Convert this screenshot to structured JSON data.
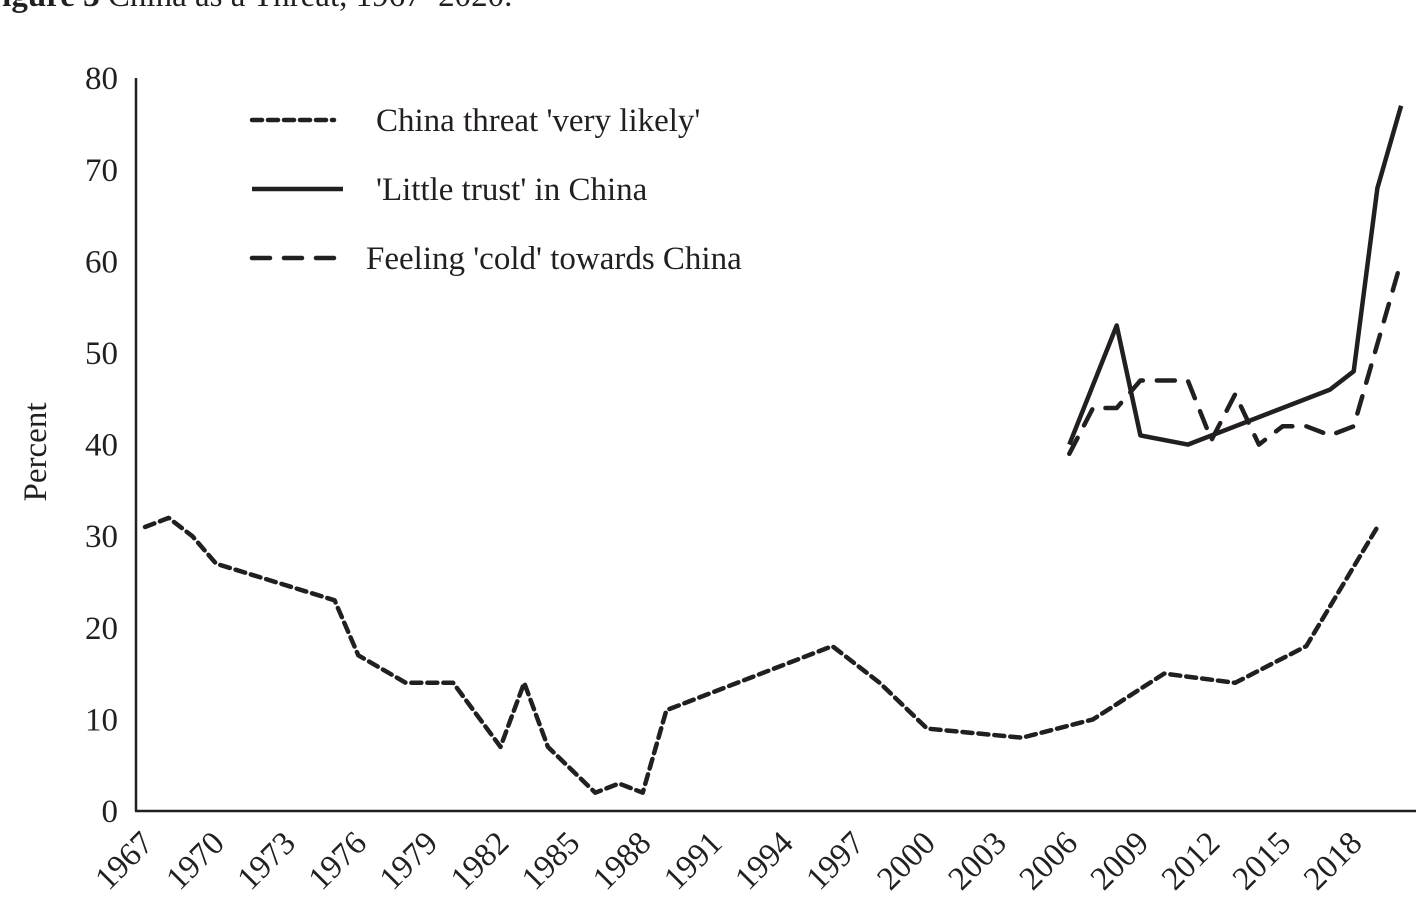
{
  "figure": {
    "label": "Figure 3",
    "caption": "China as a Threat, 1967–2020."
  },
  "chart_data": {
    "type": "line",
    "title": "Figure 3 China as a Threat, 1967–2020.",
    "xlabel": "",
    "ylabel": "Percent",
    "ylim": [
      0,
      80
    ],
    "xlim": [
      1967,
      2020
    ],
    "grid": false,
    "legend_position": "upper-left",
    "y_ticks": [
      0,
      10,
      20,
      30,
      40,
      50,
      60,
      70,
      80
    ],
    "x_ticks": [
      "1967",
      "1970",
      "1973",
      "1976",
      "1979",
      "1982",
      "1985",
      "1988",
      "1991",
      "1994",
      "1997",
      "2000",
      "2003",
      "2006",
      "2009",
      "2012",
      "2015",
      "2018"
    ],
    "series": [
      {
        "name": "China threat 'very likely'",
        "style": "short-dash",
        "points": [
          [
            1967,
            31
          ],
          [
            1968,
            32
          ],
          [
            1969,
            30
          ],
          [
            1970,
            27
          ],
          [
            1975,
            23
          ],
          [
            1976,
            17
          ],
          [
            1978,
            14
          ],
          [
            1980,
            14
          ],
          [
            1982,
            7
          ],
          [
            1983,
            14
          ],
          [
            1984,
            7
          ],
          [
            1986,
            2
          ],
          [
            1987,
            3
          ],
          [
            1988,
            2
          ],
          [
            1989,
            11
          ],
          [
            1996,
            18
          ],
          [
            1998,
            14
          ],
          [
            2000,
            9
          ],
          [
            2004,
            8
          ],
          [
            2007,
            10
          ],
          [
            2010,
            15
          ],
          [
            2013,
            14
          ],
          [
            2016,
            18
          ],
          [
            2019,
            31
          ]
        ]
      },
      {
        "name": "'Little trust' in China",
        "style": "solid",
        "points": [
          [
            2006,
            40
          ],
          [
            2008,
            53
          ],
          [
            2009,
            41
          ],
          [
            2011,
            40
          ],
          [
            2017,
            46
          ],
          [
            2018,
            48
          ],
          [
            2019,
            68
          ],
          [
            2020,
            77
          ]
        ]
      },
      {
        "name": "Feeling 'cold' towards China",
        "style": "long-dash",
        "points": [
          [
            2006,
            39
          ],
          [
            2007,
            44
          ],
          [
            2008,
            44
          ],
          [
            2009,
            47
          ],
          [
            2011,
            47
          ],
          [
            2012,
            40.5
          ],
          [
            2013,
            45.5
          ],
          [
            2014,
            40
          ],
          [
            2015,
            42
          ],
          [
            2016,
            42
          ],
          [
            2017,
            41
          ],
          [
            2018,
            42
          ],
          [
            2020,
            60
          ]
        ]
      }
    ]
  }
}
